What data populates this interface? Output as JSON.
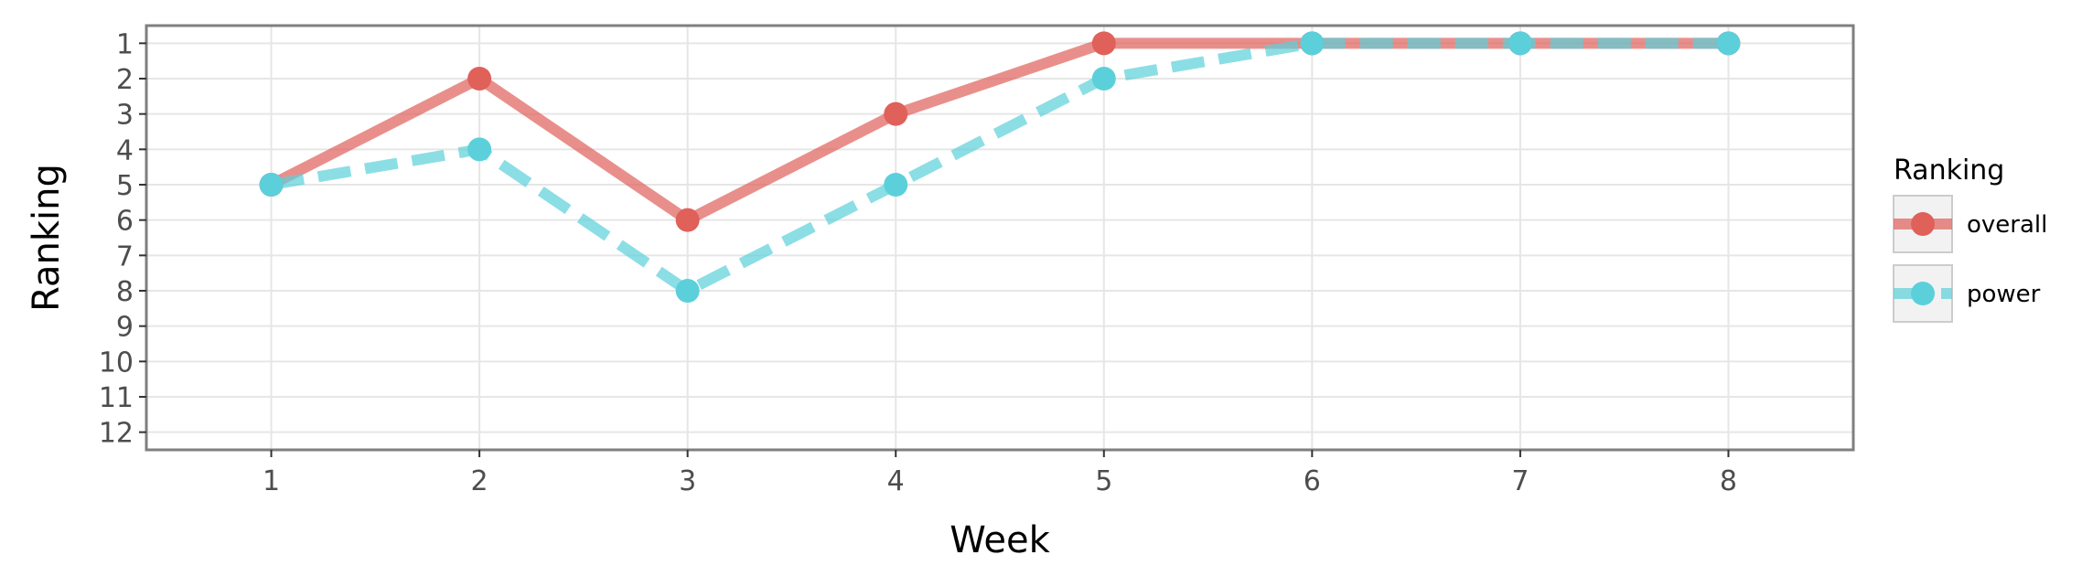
{
  "chart_data": {
    "type": "line",
    "title": "",
    "xlabel": "Week",
    "ylabel": "Ranking",
    "x": [
      1,
      2,
      3,
      4,
      5,
      6,
      7,
      8
    ],
    "xlim": [
      0.4,
      8.6
    ],
    "ylim": [
      12.5,
      0.5
    ],
    "y_reversed": true,
    "x_ticks": [
      "1",
      "2",
      "3",
      "4",
      "5",
      "6",
      "7",
      "8"
    ],
    "y_ticks": [
      "1",
      "2",
      "3",
      "4",
      "5",
      "6",
      "7",
      "8",
      "9",
      "10",
      "11",
      "12"
    ],
    "grid": true,
    "legend_position": "right",
    "legend_title": "Ranking",
    "series": [
      {
        "name": "overall",
        "values": [
          5,
          2,
          6,
          3,
          1,
          1,
          1,
          1
        ],
        "color": "#E0605A",
        "line_style": "solid"
      },
      {
        "name": "power",
        "values": [
          5,
          4,
          8,
          5,
          2,
          1,
          1,
          1
        ],
        "color": "#5BD0DA",
        "line_style": "dashed"
      }
    ]
  }
}
